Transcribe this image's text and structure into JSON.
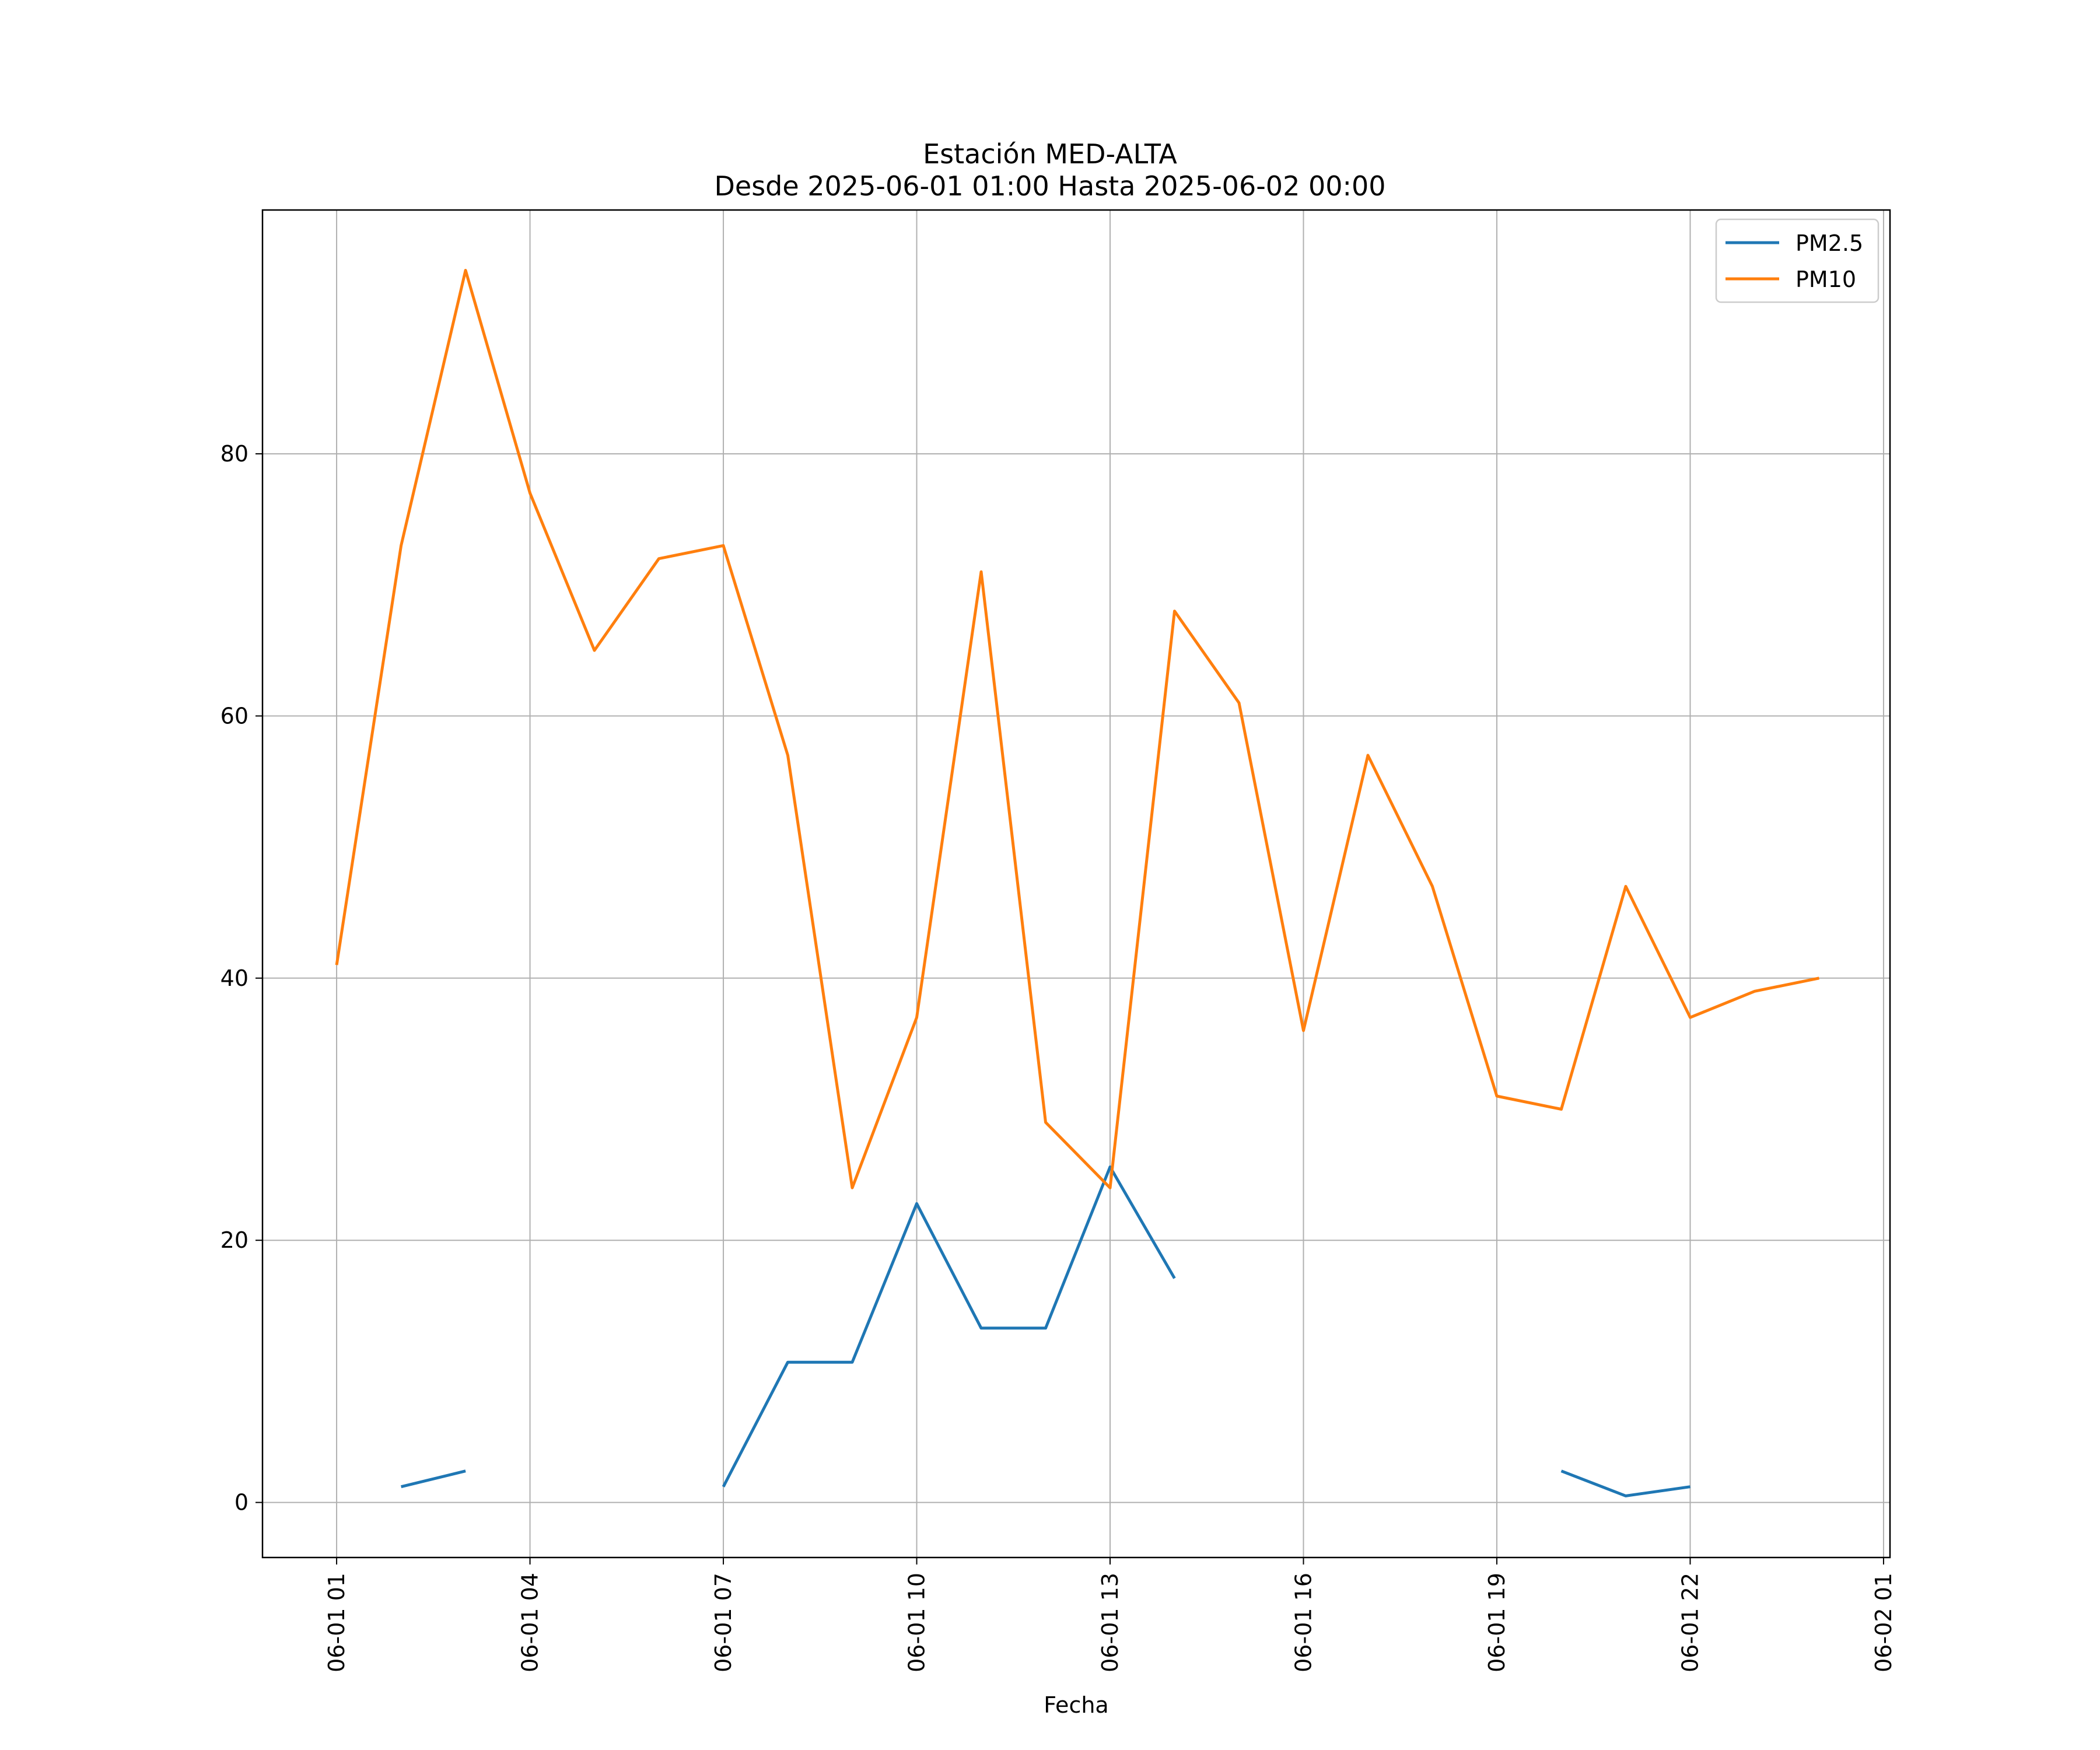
{
  "chart_data": {
    "type": "line",
    "title": "Estación MED-ALTA",
    "subtitle": "Desde 2025-06-01 01:00 Hasta 2025-06-02 00:00",
    "xlabel": "Fecha",
    "ylabel": "",
    "x_unit": "hours from 06-01 00",
    "x_ticks": [
      {
        "x": 1,
        "label": "06-01 01"
      },
      {
        "x": 4,
        "label": "06-01 04"
      },
      {
        "x": 7,
        "label": "06-01 07"
      },
      {
        "x": 10,
        "label": "06-01 10"
      },
      {
        "x": 13,
        "label": "06-01 13"
      },
      {
        "x": 16,
        "label": "06-01 16"
      },
      {
        "x": 19,
        "label": "06-01 19"
      },
      {
        "x": 22,
        "label": "06-01 22"
      },
      {
        "x": 25,
        "label": "06-02 01"
      }
    ],
    "y_ticks": [
      0,
      20,
      40,
      60,
      80
    ],
    "xlim": [
      -0.15,
      25.1
    ],
    "ylim": [
      -4.2,
      98.6
    ],
    "grid": true,
    "legend_position": "top-right",
    "x": [
      "06-01 01",
      "06-01 02",
      "06-01 03",
      "06-01 04",
      "06-01 05",
      "06-01 06",
      "06-01 07",
      "06-01 08",
      "06-01 09",
      "06-01 10",
      "06-01 11",
      "06-01 12",
      "06-01 13",
      "06-01 14",
      "06-01 15",
      "06-01 16",
      "06-01 17",
      "06-01 18",
      "06-01 19",
      "06-01 20",
      "06-01 21",
      "06-01 22",
      "06-01 23",
      "06-02 00"
    ],
    "series": [
      {
        "name": "PM2.5",
        "color": "#1f77b4",
        "values": [
          null,
          1.2,
          2.4,
          null,
          null,
          null,
          1.2,
          10.7,
          10.7,
          22.8,
          13.3,
          13.3,
          25.6,
          17.1,
          null,
          null,
          null,
          null,
          null,
          2.4,
          0.5,
          1.2,
          null,
          null
        ]
      },
      {
        "name": "PM10",
        "color": "#ff7f0e",
        "values": [
          41,
          73,
          94,
          77,
          65,
          72,
          73,
          57,
          24,
          37,
          71,
          29,
          24,
          68,
          61,
          36,
          57,
          47,
          31,
          30,
          47,
          37,
          39,
          40
        ]
      }
    ]
  }
}
